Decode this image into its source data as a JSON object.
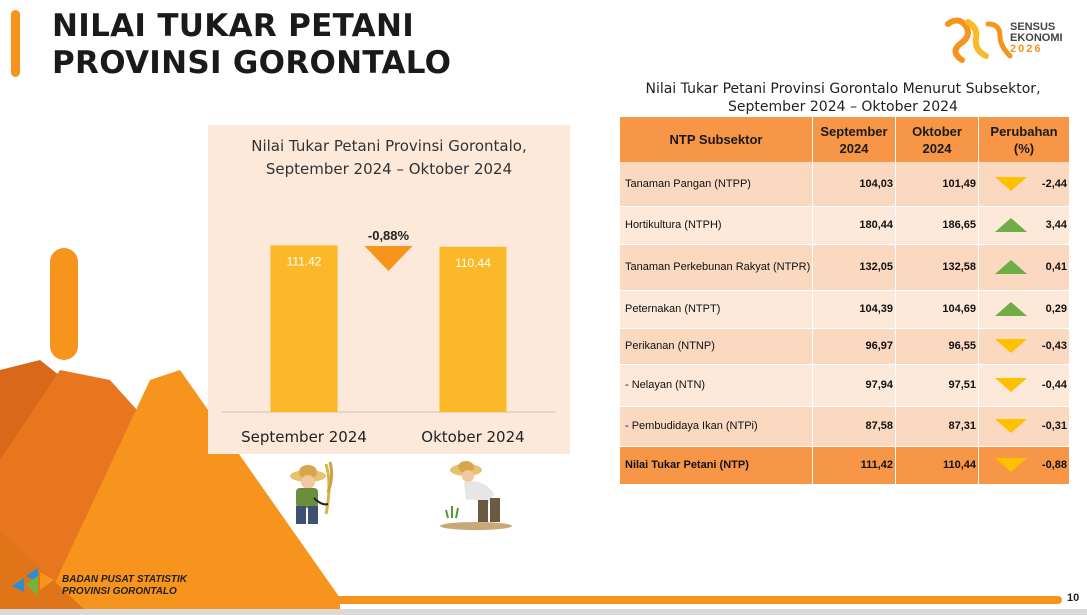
{
  "slide": {
    "title_line1": "NILAI TUKAR PETANI",
    "title_line2": "PROVINSI GORONTALO",
    "page_number": "10",
    "logo": {
      "line1": "SENSUS",
      "line2": "EKONOMI",
      "year": "2026"
    },
    "footer": {
      "line1": "BADAN PUSAT STATISTIK",
      "line2": "PROVINSI GORONTALO"
    }
  },
  "chart_data": {
    "type": "bar",
    "title_line1": "Nilai Tukar Petani Provinsi Gorontalo,",
    "title_line2": "September 2024 – Oktober 2024",
    "categories": [
      "September 2024",
      "Oktober 2024"
    ],
    "values": [
      111.42,
      110.44
    ],
    "value_labels": [
      "111.42",
      "110.44"
    ],
    "change_label": "-0,88%",
    "change_direction": "down",
    "ylim": [
      0,
      125
    ],
    "bar_color": "#fbb929",
    "arrow_color": "#f7941d",
    "grid": false,
    "legend": "none"
  },
  "table": {
    "title_line1": "Nilai Tukar Petani Provinsi Gorontalo Menurut Subsektor,",
    "title_line2": "September 2024 – Oktober 2024",
    "headers": {
      "subsektor": "NTP Subsektor",
      "sep_line1": "September",
      "sep_line2": "2024",
      "okt_line1": "Oktober",
      "okt_line2": "2024",
      "chg_line1": "Perubahan",
      "chg_line2": "(%)"
    },
    "rows": [
      {
        "name": "Tanaman Pangan (NTPP)",
        "sep": "104,03",
        "okt": "101,49",
        "chg": "-2,44",
        "dir": "down"
      },
      {
        "name": "Hortikultura (NTPH)",
        "sep": "180,44",
        "okt": "186,65",
        "chg": "3,44",
        "dir": "up"
      },
      {
        "name": "Tanaman Perkebunan Rakyat (NTPR)",
        "sep": "132,05",
        "okt": "132,58",
        "chg": "0,41",
        "dir": "up"
      },
      {
        "name": "Peternakan (NTPT)",
        "sep": "104,39",
        "okt": "104,69",
        "chg": "0,29",
        "dir": "up"
      },
      {
        "name": "Perikanan (NTNP)",
        "sep": "96,97",
        "okt": "96,55",
        "chg": "-0,43",
        "dir": "down"
      },
      {
        "name": "- Nelayan (NTN)",
        "sep": "97,94",
        "okt": "97,51",
        "chg": "-0,44",
        "dir": "down"
      },
      {
        "name": "- Pembudidaya Ikan (NTPi)",
        "sep": "87,58",
        "okt": "87,31",
        "chg": "-0,31",
        "dir": "down"
      },
      {
        "name": "Nilai Tukar Petani (NTP)",
        "sep": "111,42",
        "okt": "110,44",
        "chg": "-0,88",
        "dir": "down"
      }
    ],
    "colors": {
      "header": "#f79646",
      "up": "#70ad47",
      "down": "#ffc000"
    }
  }
}
